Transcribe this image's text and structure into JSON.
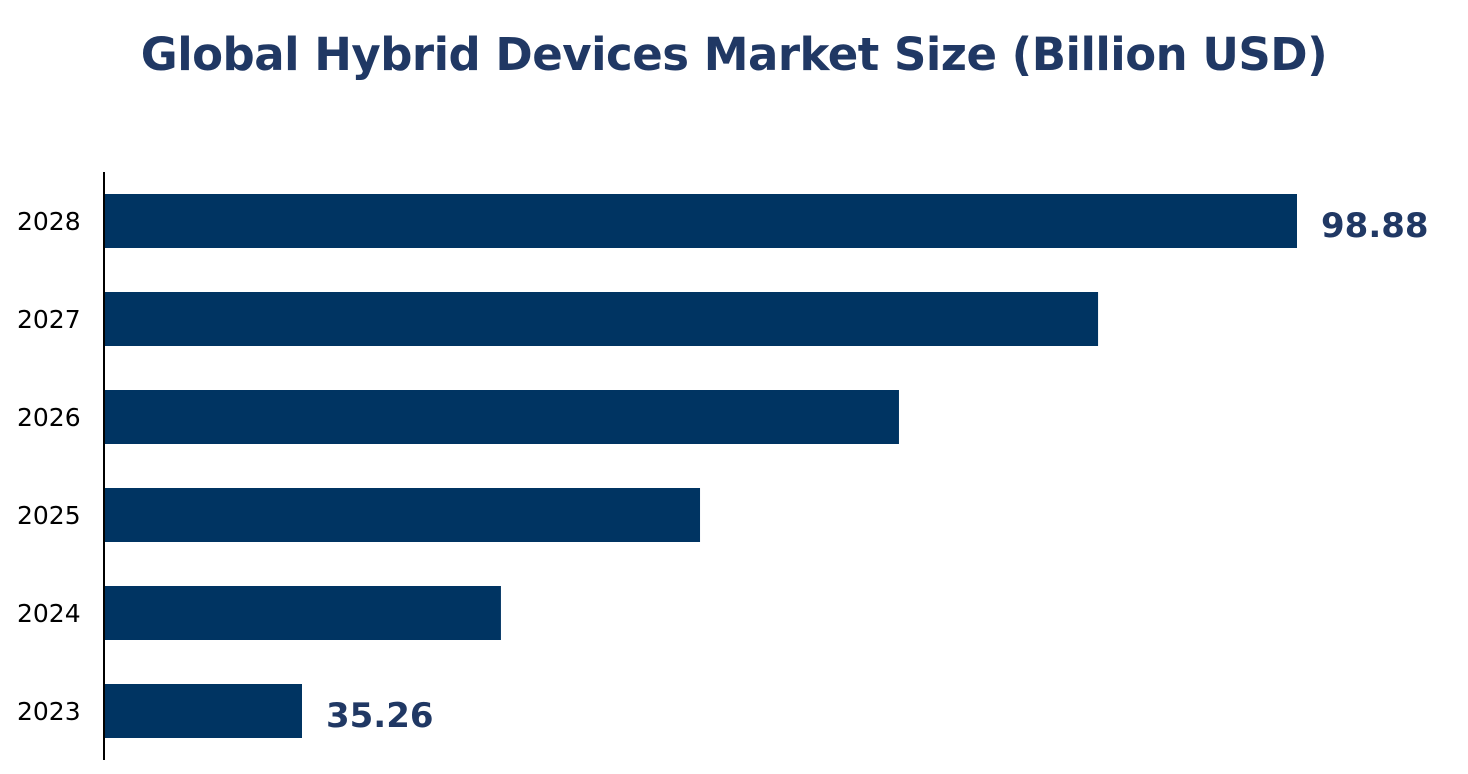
{
  "chart_data": {
    "type": "bar",
    "orientation": "horizontal",
    "title": "Global Hybrid Devices Market Size (Billion USD)",
    "xlabel": "",
    "ylabel": "",
    "categories": [
      "2023",
      "2024",
      "2025",
      "2026",
      "2027",
      "2028"
    ],
    "values": [
      35.26,
      47.98,
      60.71,
      73.43,
      86.16,
      98.88
    ],
    "data_labels": {
      "2023": "35.26",
      "2028": "98.88"
    },
    "xlim": [
      22.6,
      98.88
    ],
    "grid": false,
    "legend": "none",
    "colors": {
      "bar": "#003462",
      "title": "#203864",
      "label": "#203864",
      "axis": "#000000"
    }
  }
}
